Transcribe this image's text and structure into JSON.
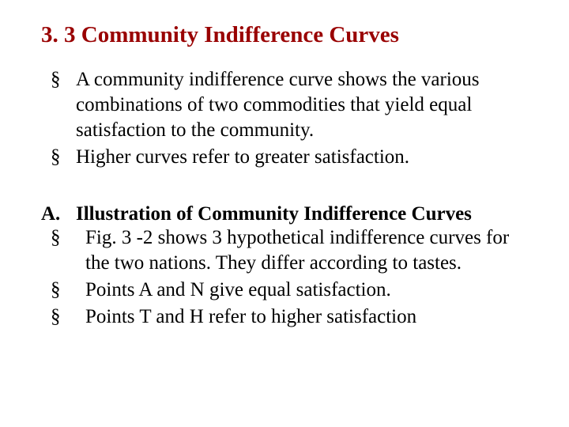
{
  "heading": "3. 3 Community Indifference Curves",
  "section1": {
    "bullets": [
      "A community indifference curve shows the various combinations of two commodities that yield equal satisfaction to the community.",
      "Higher curves refer to greater satisfaction."
    ]
  },
  "section2": {
    "label": "A.",
    "title": "Illustration of Community Indifference Curves",
    "bullets": [
      "Fig. 3 -2 shows 3 hypothetical indifference curves for the two nations. They differ according to tastes.",
      "Points A and N give equal satisfaction.",
      "Points T and H refer to higher satisfaction"
    ]
  },
  "colors": {
    "heading": "#990000",
    "body": "#000000",
    "background": "#ffffff"
  },
  "typography": {
    "heading_fontsize": 29,
    "body_fontsize": 25,
    "font_family": "Times New Roman"
  }
}
